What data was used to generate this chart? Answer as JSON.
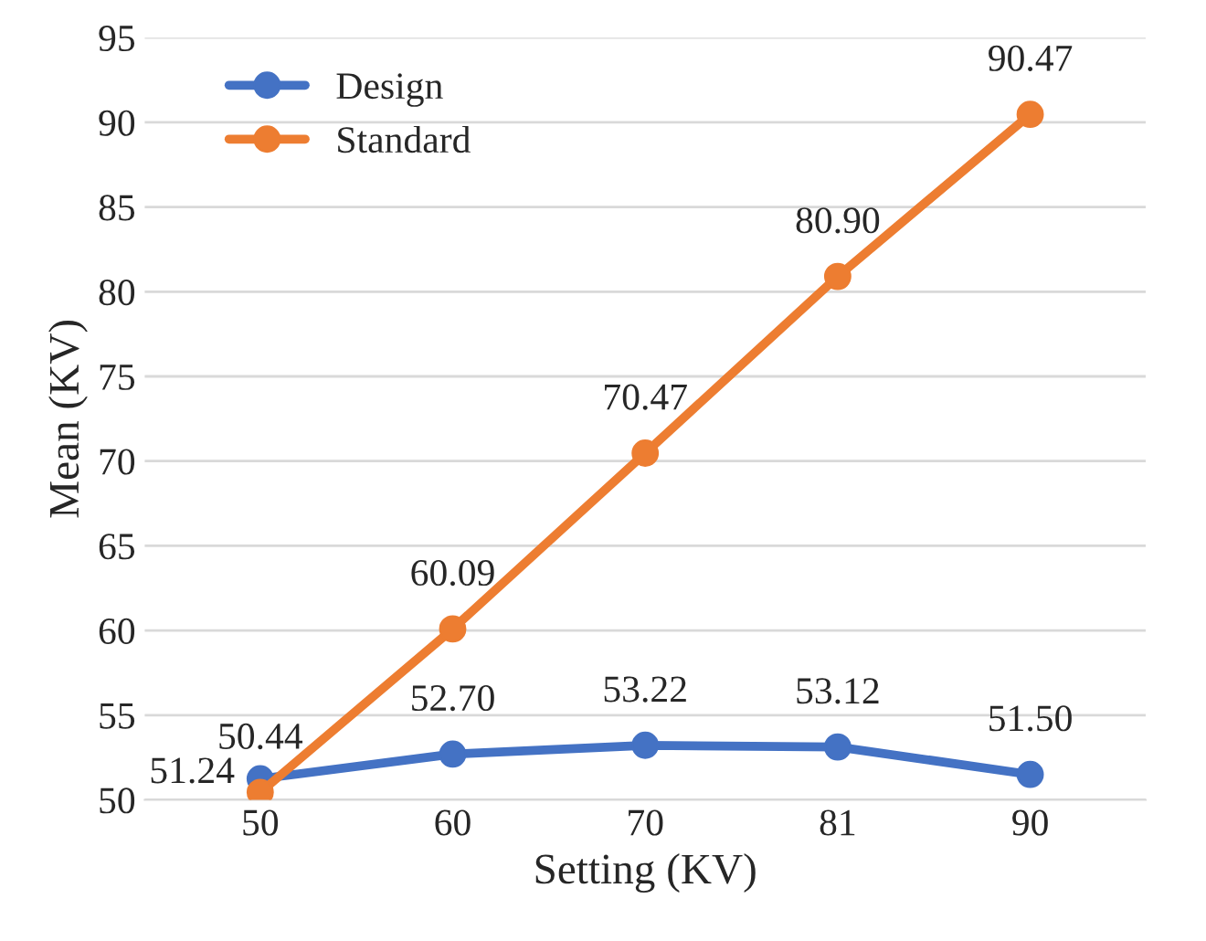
{
  "chart_data": {
    "type": "line",
    "xlabel": "Setting (KV)",
    "ylabel": "Mean (KV)",
    "categories": [
      "50",
      "60",
      "70",
      "81",
      "90"
    ],
    "series": [
      {
        "name": "Design",
        "color": "#4472c4",
        "values": [
          51.24,
          52.7,
          53.22,
          53.12,
          51.5
        ],
        "value_labels": [
          "51.24",
          "52.70",
          "53.22",
          "53.12",
          "51.50"
        ]
      },
      {
        "name": "Standard",
        "color": "#ed7d31",
        "values": [
          50.44,
          60.09,
          70.47,
          80.9,
          90.47
        ],
        "value_labels": [
          "50.44",
          "60.09",
          "70.47",
          "80.90",
          "90.47"
        ]
      }
    ],
    "ylim": [
      50,
      95
    ],
    "yticks": [
      50,
      55,
      60,
      65,
      70,
      75,
      80,
      85,
      90,
      95
    ],
    "grid": "y",
    "legend": "top left",
    "marker": "circle",
    "line_style": "solid"
  }
}
